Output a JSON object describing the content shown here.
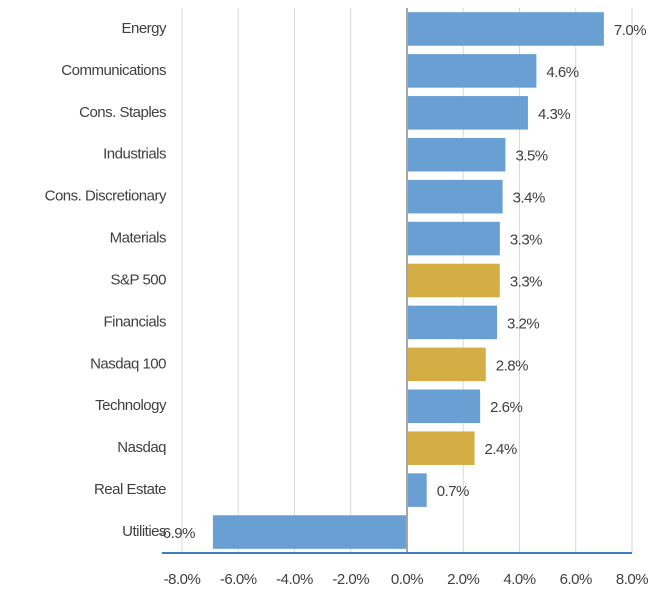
{
  "chart_data": {
    "type": "bar",
    "orientation": "horizontal",
    "categories": [
      "Energy",
      "Communications",
      "Cons. Staples",
      "Industrials",
      "Cons. Discretionary",
      "Materials",
      "S&P 500",
      "Financials",
      "Nasdaq 100",
      "Technology",
      "Nasdaq",
      "Real Estate",
      "Utilities"
    ],
    "values": [
      7.0,
      4.6,
      4.3,
      3.5,
      3.4,
      3.3,
      3.3,
      3.2,
      2.8,
      2.6,
      2.4,
      0.7,
      -6.9
    ],
    "value_labels": [
      "7.0%",
      "4.6%",
      "4.3%",
      "3.5%",
      "3.4%",
      "3.3%",
      "3.3%",
      "3.2%",
      "2.8%",
      "2.6%",
      "2.4%",
      "0.7%",
      "-6.9%"
    ],
    "colors": [
      "#6a9fd3",
      "#6a9fd3",
      "#6a9fd3",
      "#6a9fd3",
      "#6a9fd3",
      "#6a9fd3",
      "#d4ae45",
      "#6a9fd3",
      "#d4ae45",
      "#6a9fd3",
      "#d4ae45",
      "#6a9fd3",
      "#6a9fd3"
    ],
    "xlim": [
      -8,
      8
    ],
    "xticks": [
      {
        "value": -8,
        "label": "-8.0%"
      },
      {
        "value": -6,
        "label": "-6.0%"
      },
      {
        "value": -4,
        "label": "-4.0%"
      },
      {
        "value": -2,
        "label": "-2.0%"
      },
      {
        "value": 0,
        "label": "0.0%"
      },
      {
        "value": 2,
        "label": "2.0%"
      },
      {
        "value": 4,
        "label": "4.0%"
      },
      {
        "value": 6,
        "label": "6.0%"
      },
      {
        "value": 8,
        "label": "8.0%"
      }
    ],
    "grid": true
  }
}
